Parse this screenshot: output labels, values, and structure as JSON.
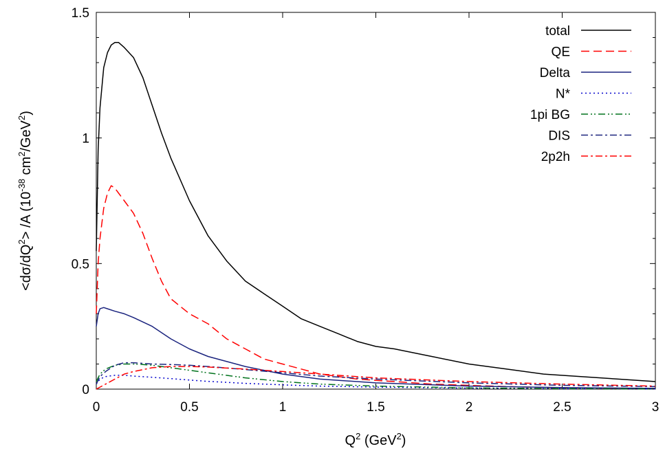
{
  "chart_data": {
    "type": "line",
    "title": "",
    "xlabel": {
      "base": "Q",
      "sup": "2",
      "unit_open": " (GeV",
      "unit_sup": "2",
      "unit_close": ")"
    },
    "ylabel": {
      "p1": "<dσ/dQ",
      "s1": "2",
      "p2": "> /A (10",
      "s2": "-38",
      "p3": " cm",
      "s3": "2",
      "p4": "/GeV",
      "s4": "2",
      "p5": ")"
    },
    "xlim": [
      0,
      3
    ],
    "ylim": [
      0,
      1.5
    ],
    "xticks": [
      0,
      0.5,
      1,
      1.5,
      2,
      2.5,
      3
    ],
    "xtick_labels": [
      "0",
      "0.5",
      "1",
      "1.5",
      "2",
      "2.5",
      "3"
    ],
    "yticks": [
      0,
      0.5,
      1,
      1.5
    ],
    "ytick_labels": [
      "0",
      "0.5",
      "1",
      "1.5"
    ],
    "grid": false,
    "legend_position": "top-right",
    "series": [
      {
        "name": "total",
        "color": "#000000",
        "dash": "solid",
        "x": [
          0,
          0.01,
          0.02,
          0.04,
          0.06,
          0.08,
          0.1,
          0.12,
          0.15,
          0.2,
          0.25,
          0.3,
          0.35,
          0.4,
          0.5,
          0.6,
          0.7,
          0.8,
          0.9,
          1.0,
          1.1,
          1.2,
          1.3,
          1.4,
          1.5,
          1.6,
          1.8,
          2.0,
          2.2,
          2.4,
          2.6,
          2.8,
          3.0
        ],
        "y": [
          0.55,
          0.95,
          1.12,
          1.28,
          1.34,
          1.37,
          1.38,
          1.38,
          1.36,
          1.32,
          1.24,
          1.13,
          1.02,
          0.92,
          0.75,
          0.61,
          0.51,
          0.43,
          0.38,
          0.33,
          0.28,
          0.25,
          0.22,
          0.19,
          0.17,
          0.16,
          0.13,
          0.1,
          0.08,
          0.06,
          0.05,
          0.04,
          0.03
        ]
      },
      {
        "name": "QE",
        "color": "#ff0000",
        "dash": "long",
        "x": [
          0,
          0.01,
          0.02,
          0.04,
          0.06,
          0.08,
          0.1,
          0.12,
          0.15,
          0.2,
          0.25,
          0.3,
          0.35,
          0.4,
          0.5,
          0.6,
          0.7,
          0.8,
          0.9,
          1.0,
          1.1,
          1.2,
          1.3,
          1.4,
          1.5,
          1.6,
          1.8,
          2.0,
          2.2,
          2.5,
          3.0
        ],
        "y": [
          0.3,
          0.5,
          0.6,
          0.72,
          0.78,
          0.81,
          0.8,
          0.78,
          0.75,
          0.7,
          0.62,
          0.52,
          0.43,
          0.36,
          0.3,
          0.26,
          0.2,
          0.16,
          0.12,
          0.1,
          0.08,
          0.06,
          0.05,
          0.04,
          0.035,
          0.03,
          0.02,
          0.015,
          0.01,
          0.005,
          0.003
        ]
      },
      {
        "name": "Delta",
        "color": "#1a237e",
        "dash": "solid",
        "x": [
          0,
          0.01,
          0.02,
          0.04,
          0.06,
          0.1,
          0.15,
          0.2,
          0.3,
          0.4,
          0.5,
          0.6,
          0.8,
          1.0,
          1.2,
          1.5,
          2.0,
          2.5,
          3.0
        ],
        "y": [
          0.25,
          0.3,
          0.32,
          0.325,
          0.32,
          0.31,
          0.3,
          0.285,
          0.25,
          0.2,
          0.16,
          0.13,
          0.09,
          0.06,
          0.04,
          0.025,
          0.012,
          0.006,
          0.003
        ]
      },
      {
        "name": "N*",
        "color": "#0000cc",
        "dash": "dotted",
        "x": [
          0,
          0.02,
          0.05,
          0.1,
          0.15,
          0.2,
          0.3,
          0.4,
          0.5,
          0.6,
          0.8,
          1.0,
          1.2,
          1.5,
          2.0,
          2.5,
          3.0
        ],
        "y": [
          0.02,
          0.04,
          0.05,
          0.055,
          0.055,
          0.052,
          0.047,
          0.042,
          0.036,
          0.031,
          0.023,
          0.017,
          0.012,
          0.008,
          0.004,
          0.002,
          0.001
        ]
      },
      {
        "name": "1pi BG",
        "color": "#00721c",
        "dash": "dashdotdot",
        "x": [
          0,
          0.02,
          0.05,
          0.1,
          0.15,
          0.2,
          0.25,
          0.3,
          0.4,
          0.5,
          0.6,
          0.8,
          1.0,
          1.2,
          1.5,
          2.0,
          2.5,
          3.0
        ],
        "y": [
          0.03,
          0.06,
          0.08,
          0.095,
          0.1,
          0.1,
          0.098,
          0.095,
          0.085,
          0.075,
          0.065,
          0.045,
          0.03,
          0.02,
          0.012,
          0.005,
          0.002,
          0.001
        ]
      },
      {
        "name": "DIS",
        "color": "#1a237e",
        "dash": "dashdot",
        "x": [
          0,
          0.02,
          0.05,
          0.1,
          0.15,
          0.2,
          0.3,
          0.4,
          0.5,
          0.6,
          0.8,
          1.0,
          1.2,
          1.5,
          2.0,
          2.5,
          3.0
        ],
        "y": [
          0.02,
          0.05,
          0.07,
          0.095,
          0.105,
          0.105,
          0.1,
          0.098,
          0.095,
          0.09,
          0.078,
          0.065,
          0.052,
          0.04,
          0.025,
          0.015,
          0.01
        ]
      },
      {
        "name": "2p2h",
        "color": "#ff0000",
        "dash": "dashdot",
        "x": [
          0,
          0.05,
          0.1,
          0.15,
          0.2,
          0.3,
          0.4,
          0.5,
          0.6,
          0.8,
          1.0,
          1.2,
          1.5,
          2.0,
          2.5,
          3.0
        ],
        "y": [
          0,
          0.02,
          0.04,
          0.06,
          0.07,
          0.085,
          0.09,
          0.09,
          0.088,
          0.08,
          0.07,
          0.06,
          0.045,
          0.03,
          0.02,
          0.012
        ]
      }
    ]
  }
}
